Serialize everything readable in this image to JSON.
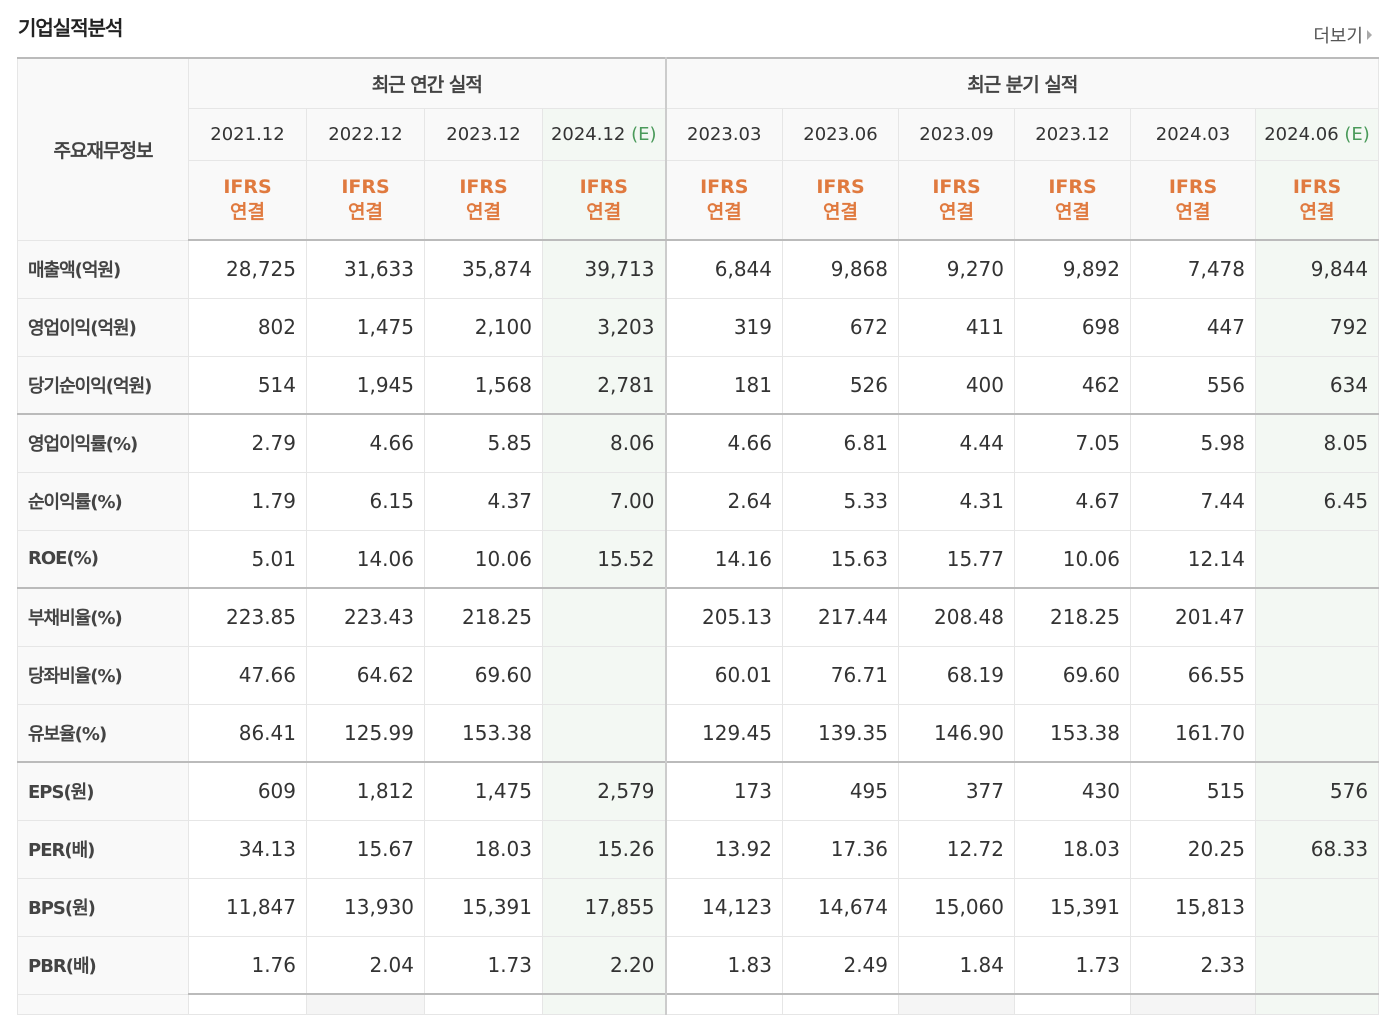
{
  "title": "기업실적분석",
  "more_label": "더보기",
  "header": {
    "row_label": "주요재무정보",
    "annual_label": "최근 연간 실적",
    "quarterly_label": "최근 분기 실적",
    "periods": [
      {
        "date": "2021.12",
        "est": "",
        "type1": "IFRS",
        "type2": "연결"
      },
      {
        "date": "2022.12",
        "est": "",
        "type1": "IFRS",
        "type2": "연결"
      },
      {
        "date": "2023.12",
        "est": "",
        "type1": "IFRS",
        "type2": "연결"
      },
      {
        "date": "2024.12",
        "est": "(E)",
        "type1": "IFRS",
        "type2": "연결"
      },
      {
        "date": "2023.03",
        "est": "",
        "type1": "IFRS",
        "type2": "연결"
      },
      {
        "date": "2023.06",
        "est": "",
        "type1": "IFRS",
        "type2": "연결"
      },
      {
        "date": "2023.09",
        "est": "",
        "type1": "IFRS",
        "type2": "연결"
      },
      {
        "date": "2023.12",
        "est": "",
        "type1": "IFRS",
        "type2": "연결"
      },
      {
        "date": "2024.03",
        "est": "",
        "type1": "IFRS",
        "type2": "연결"
      },
      {
        "date": "2024.06",
        "est": "(E)",
        "type1": "IFRS",
        "type2": "연결"
      }
    ]
  },
  "rows": [
    {
      "label": "매출액(억원)",
      "values": [
        "28,725",
        "31,633",
        "35,874",
        "39,713",
        "6,844",
        "9,868",
        "9,270",
        "9,892",
        "7,478",
        "9,844"
      ]
    },
    {
      "label": "영업이익(억원)",
      "values": [
        "802",
        "1,475",
        "2,100",
        "3,203",
        "319",
        "672",
        "411",
        "698",
        "447",
        "792"
      ]
    },
    {
      "label": "당기순이익(억원)",
      "values": [
        "514",
        "1,945",
        "1,568",
        "2,781",
        "181",
        "526",
        "400",
        "462",
        "556",
        "634"
      ]
    },
    {
      "label": "영업이익률(%)",
      "values": [
        "2.79",
        "4.66",
        "5.85",
        "8.06",
        "4.66",
        "6.81",
        "4.44",
        "7.05",
        "5.98",
        "8.05"
      ]
    },
    {
      "label": "순이익률(%)",
      "values": [
        "1.79",
        "6.15",
        "4.37",
        "7.00",
        "2.64",
        "5.33",
        "4.31",
        "4.67",
        "7.44",
        "6.45"
      ]
    },
    {
      "label": "ROE(%)",
      "values": [
        "5.01",
        "14.06",
        "10.06",
        "15.52",
        "14.16",
        "15.63",
        "15.77",
        "10.06",
        "12.14",
        ""
      ]
    },
    {
      "label": "부채비율(%)",
      "values": [
        "223.85",
        "223.43",
        "218.25",
        "",
        "205.13",
        "217.44",
        "208.48",
        "218.25",
        "201.47",
        ""
      ]
    },
    {
      "label": "당좌비율(%)",
      "values": [
        "47.66",
        "64.62",
        "69.60",
        "",
        "60.01",
        "76.71",
        "68.19",
        "69.60",
        "66.55",
        ""
      ]
    },
    {
      "label": "유보율(%)",
      "values": [
        "86.41",
        "125.99",
        "153.38",
        "",
        "129.45",
        "139.35",
        "146.90",
        "153.38",
        "161.70",
        ""
      ]
    },
    {
      "label": "EPS(원)",
      "values": [
        "609",
        "1,812",
        "1,475",
        "2,579",
        "173",
        "495",
        "377",
        "430",
        "515",
        "576"
      ]
    },
    {
      "label": "PER(배)",
      "values": [
        "34.13",
        "15.67",
        "18.03",
        "15.26",
        "13.92",
        "17.36",
        "12.72",
        "18.03",
        "20.25",
        "68.33"
      ]
    },
    {
      "label": "BPS(원)",
      "values": [
        "11,847",
        "13,930",
        "15,391",
        "17,855",
        "14,123",
        "14,674",
        "15,060",
        "15,391",
        "15,813",
        ""
      ]
    },
    {
      "label": "PBR(배)",
      "values": [
        "1.76",
        "2.04",
        "1.73",
        "2.20",
        "1.83",
        "2.49",
        "1.84",
        "1.73",
        "2.33",
        ""
      ]
    }
  ],
  "colors": {
    "ifrs": "#e07a3f",
    "estimate": "#4a9a5a",
    "estimate_bg": "#f3f8f3"
  }
}
